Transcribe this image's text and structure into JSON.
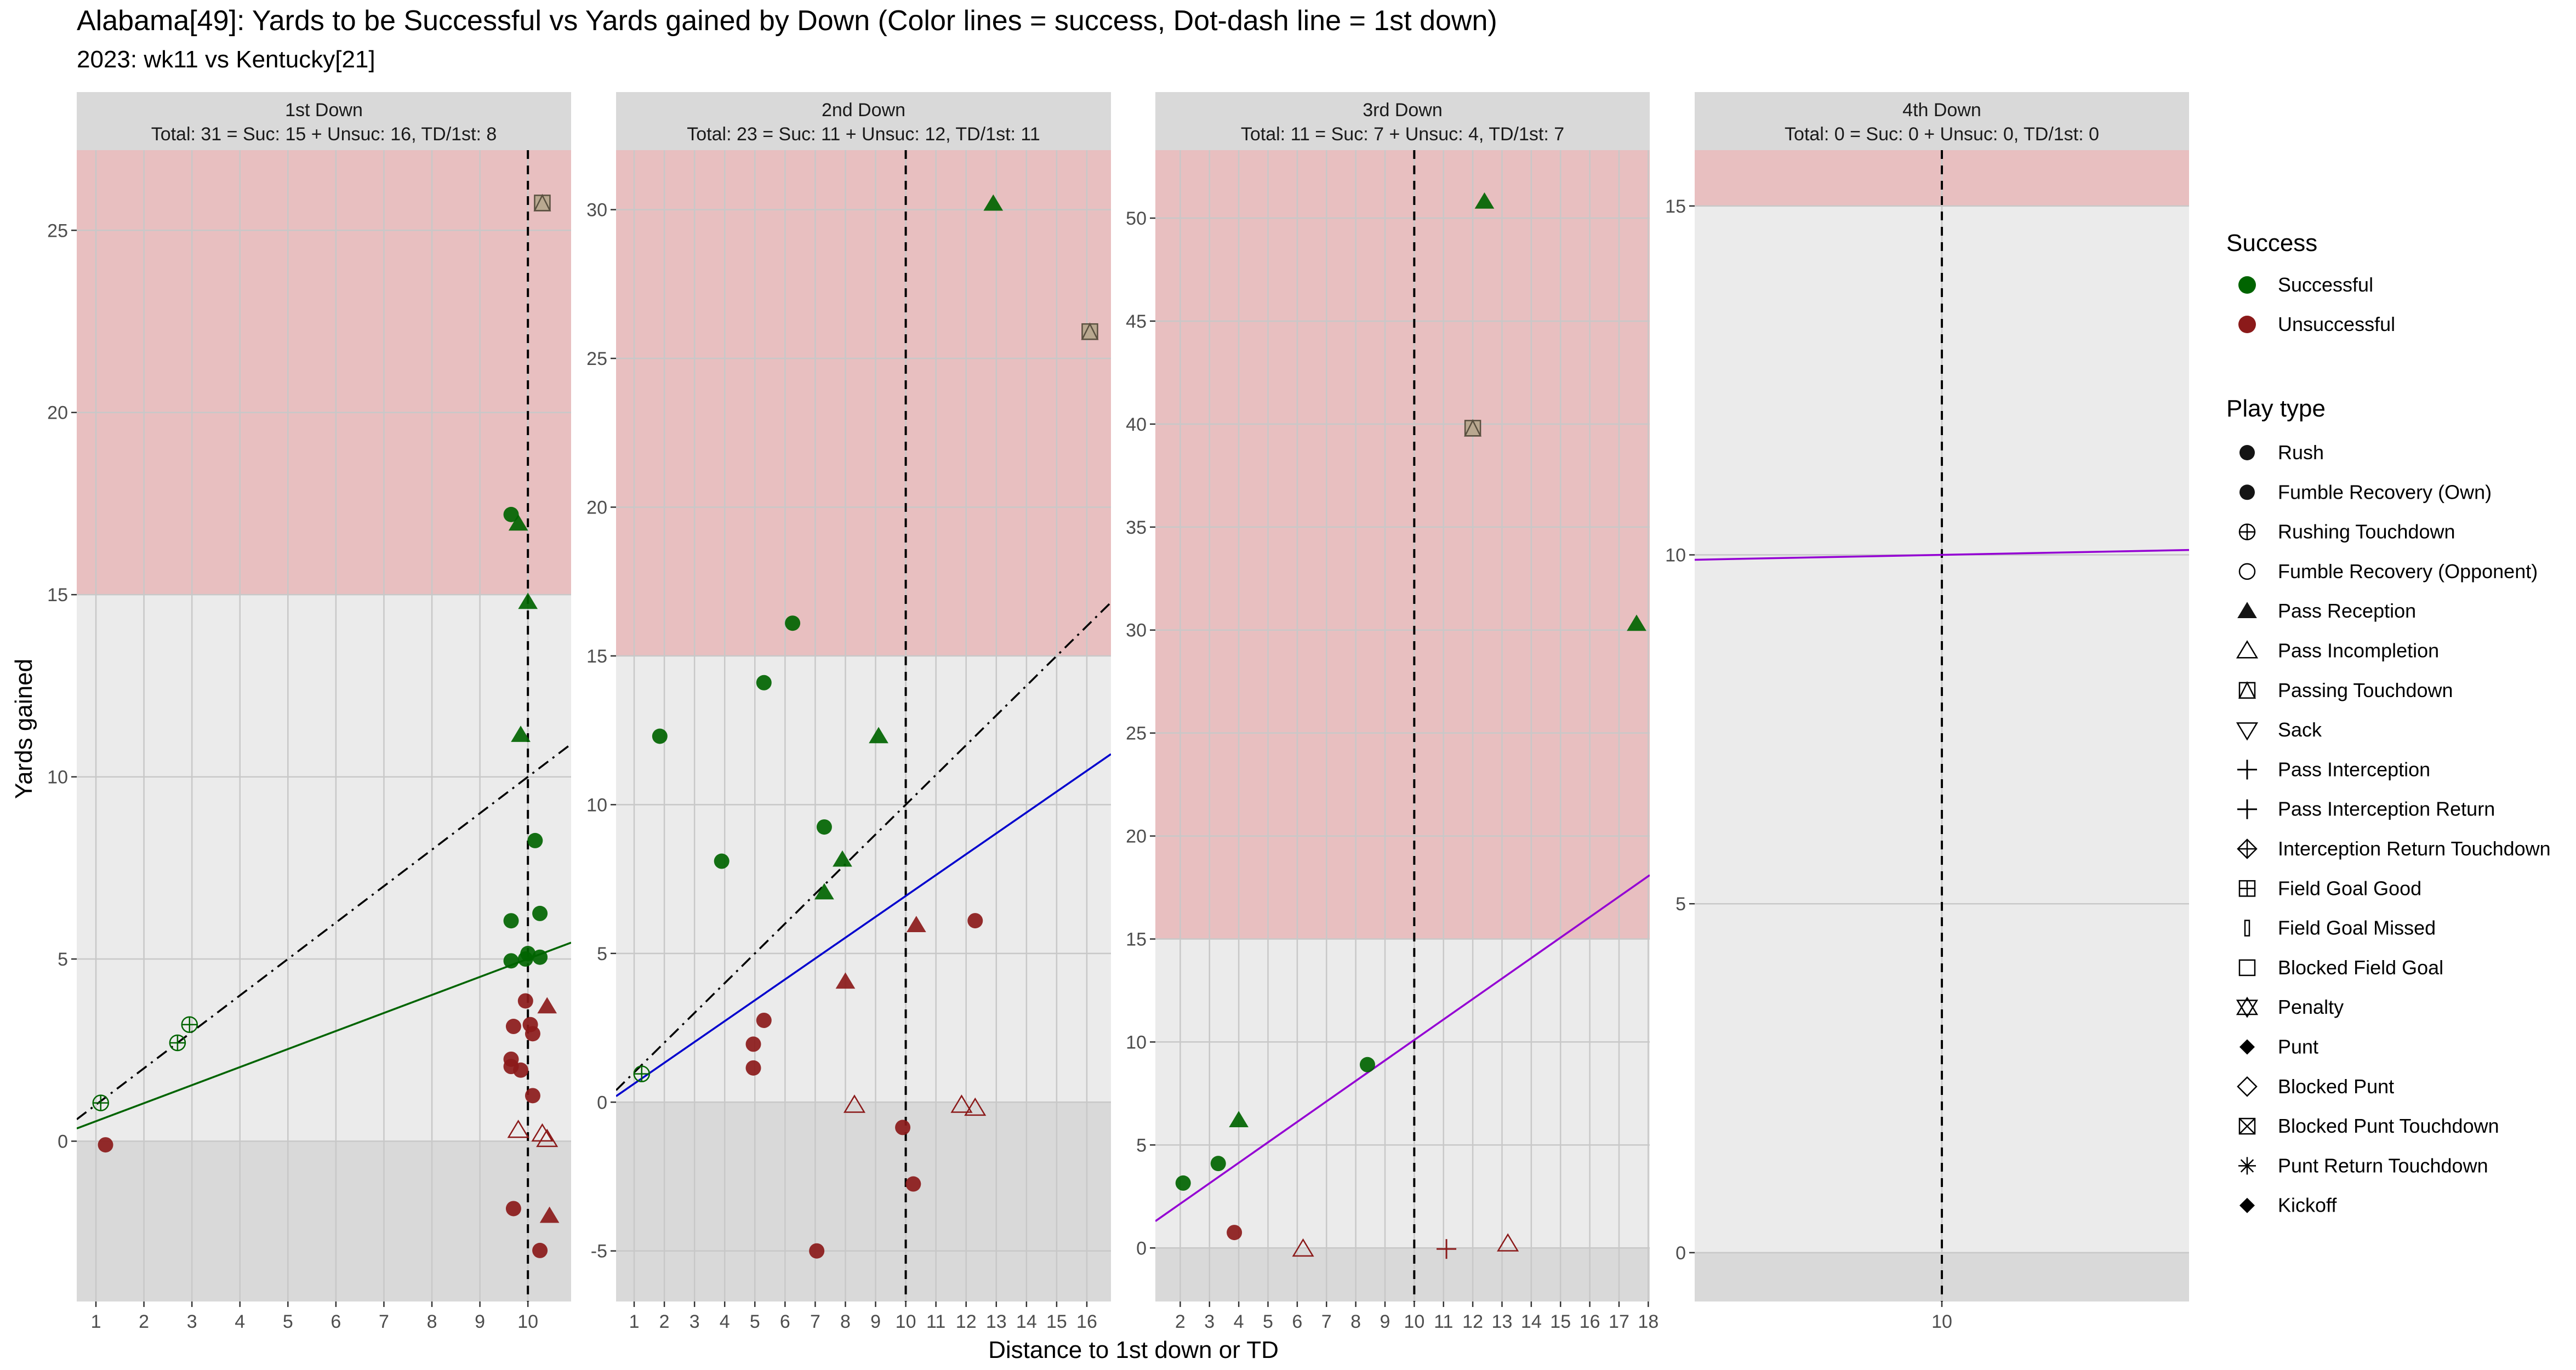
{
  "title": "Alabama[49]: Yards to be Successful vs Yards gained by Down  (Color lines = success, Dot-dash line = 1st down)",
  "subtitle": "2023: wk11 vs Kentucky[21]",
  "xlabel": "Distance to 1st down or TD",
  "ylabel": "Yards gained",
  "colors": {
    "successful": "#006400",
    "unsuccessful": "#8B1A1A",
    "panel_bg": "#EBEBEB",
    "strip_bg": "#D9D9D9",
    "red_zone": "#E8BFC0",
    "neg_zone": "#D9D9D9",
    "grid": "#C8C8C8"
  },
  "legend": {
    "success_title": "Success",
    "success_items": [
      {
        "label": "Successful",
        "color": "#006400"
      },
      {
        "label": "Unsuccessful",
        "color": "#8B1A1A"
      }
    ],
    "playtype_title": "Play type",
    "playtype_items": [
      {
        "label": "Rush",
        "icon": "filled-circle"
      },
      {
        "label": "Fumble Recovery (Own)",
        "icon": "filled-circle"
      },
      {
        "label": "Rushing Touchdown",
        "icon": "circle-plus"
      },
      {
        "label": "Fumble Recovery (Opponent)",
        "icon": "open-circle"
      },
      {
        "label": "Pass Reception",
        "icon": "filled-triangle"
      },
      {
        "label": "Pass Incompletion",
        "icon": "open-triangle"
      },
      {
        "label": "Passing Touchdown",
        "icon": "square-triangle"
      },
      {
        "label": "Sack",
        "icon": "open-triangle-down"
      },
      {
        "label": "Pass Interception",
        "icon": "plus"
      },
      {
        "label": "Pass Interception Return",
        "icon": "plus"
      },
      {
        "label": "Interception Return Touchdown",
        "icon": "diamond-plus"
      },
      {
        "label": "Field Goal Good",
        "icon": "square-plus"
      },
      {
        "label": "Field Goal Missed",
        "icon": "thin-rect"
      },
      {
        "label": "Blocked Field Goal",
        "icon": "open-square"
      },
      {
        "label": "Penalty",
        "icon": "star-of-david"
      },
      {
        "label": "Punt",
        "icon": "filled-diamond"
      },
      {
        "label": "Blocked Punt",
        "icon": "open-diamond"
      },
      {
        "label": "Blocked Punt Touchdown",
        "icon": "square-x"
      },
      {
        "label": "Punt Return Touchdown",
        "icon": "asterisk"
      },
      {
        "label": "Kickoff",
        "icon": "filled-diamond"
      }
    ]
  },
  "chart_data": [
    {
      "type": "scatter",
      "strip_title": "1st Down",
      "strip_subtitle": "Total: 31 = Suc: 15 + Unsuc: 16, TD/1st: 8",
      "xlim": [
        0.6,
        10.9
      ],
      "ylim": [
        -4.4,
        27.2
      ],
      "xticks": [
        1,
        2,
        3,
        4,
        5,
        6,
        7,
        8,
        9,
        10
      ],
      "xticklabels": [
        "1",
        "2",
        "3",
        "4",
        "5",
        "6",
        "7",
        "8",
        "9",
        "10"
      ],
      "yticks": [
        0,
        5,
        10,
        15,
        20,
        25
      ],
      "yticklabels": [
        "0",
        "5",
        "10",
        "15",
        "20",
        "25"
      ],
      "redzone_from": 15,
      "vline": 10,
      "first_down_line": [
        [
          0.6,
          0.6
        ],
        [
          10.9,
          10.9
        ]
      ],
      "success_line": {
        "color": "#006400",
        "points": [
          [
            0.6,
            0.35
          ],
          [
            10.9,
            5.45
          ]
        ]
      },
      "points": [
        {
          "x": 1.1,
          "y": 1.05,
          "shape": "circle-plus",
          "success": true
        },
        {
          "x": 1.2,
          "y": -0.1,
          "shape": "circle",
          "success": false
        },
        {
          "x": 2.7,
          "y": 2.7,
          "shape": "circle-plus",
          "success": true
        },
        {
          "x": 2.95,
          "y": 3.2,
          "shape": "circle-plus",
          "success": true
        },
        {
          "x": 9.65,
          "y": 17.2,
          "shape": "circle",
          "success": true
        },
        {
          "x": 9.8,
          "y": 16.95,
          "shape": "triangle",
          "success": true
        },
        {
          "x": 10.0,
          "y": 14.8,
          "shape": "triangle",
          "success": true
        },
        {
          "x": 9.85,
          "y": 11.15,
          "shape": "triangle",
          "success": true
        },
        {
          "x": 10.15,
          "y": 8.25,
          "shape": "circle",
          "success": true
        },
        {
          "x": 9.65,
          "y": 6.05,
          "shape": "circle",
          "success": true
        },
        {
          "x": 10.25,
          "y": 6.25,
          "shape": "circle",
          "success": true
        },
        {
          "x": 9.65,
          "y": 4.95,
          "shape": "circle",
          "success": true
        },
        {
          "x": 9.95,
          "y": 5.0,
          "shape": "circle",
          "success": true
        },
        {
          "x": 10.0,
          "y": 5.15,
          "shape": "circle",
          "success": true
        },
        {
          "x": 10.25,
          "y": 5.05,
          "shape": "circle",
          "success": true
        },
        {
          "x": 10.3,
          "y": 25.75,
          "shape": "square-triangle",
          "success": true
        },
        {
          "x": 9.95,
          "y": 3.85,
          "shape": "circle",
          "success": false
        },
        {
          "x": 10.4,
          "y": 3.7,
          "shape": "triangle",
          "success": false
        },
        {
          "x": 9.7,
          "y": 3.15,
          "shape": "circle",
          "success": false
        },
        {
          "x": 10.05,
          "y": 3.2,
          "shape": "circle",
          "success": false
        },
        {
          "x": 10.1,
          "y": 2.95,
          "shape": "circle",
          "success": false
        },
        {
          "x": 9.65,
          "y": 2.25,
          "shape": "circle",
          "success": false
        },
        {
          "x": 9.65,
          "y": 2.05,
          "shape": "circle",
          "success": false
        },
        {
          "x": 9.85,
          "y": 1.95,
          "shape": "circle",
          "success": false
        },
        {
          "x": 10.1,
          "y": 1.25,
          "shape": "circle",
          "success": false
        },
        {
          "x": 9.8,
          "y": 0.3,
          "shape": "open-triangle",
          "success": false
        },
        {
          "x": 10.3,
          "y": 0.2,
          "shape": "open-triangle",
          "success": false
        },
        {
          "x": 10.4,
          "y": 0.05,
          "shape": "open-triangle",
          "success": false
        },
        {
          "x": 9.7,
          "y": -1.85,
          "shape": "circle",
          "success": false
        },
        {
          "x": 10.45,
          "y": -2.05,
          "shape": "triangle",
          "success": false
        },
        {
          "x": 10.25,
          "y": -3.0,
          "shape": "circle",
          "success": false
        }
      ]
    },
    {
      "type": "scatter",
      "strip_title": "2nd Down",
      "strip_subtitle": "Total: 23 = Suc: 11 + Unsuc: 12, TD/1st: 11",
      "xlim": [
        0.4,
        16.8
      ],
      "ylim": [
        -6.7,
        32.0
      ],
      "xticks": [
        1,
        2,
        3,
        4,
        5,
        6,
        7,
        8,
        9,
        10,
        11,
        12,
        13,
        14,
        15,
        16
      ],
      "xticklabels": [
        "1",
        "2",
        "3",
        "4",
        "5",
        "6",
        "7",
        "8",
        "9",
        "10",
        "11",
        "12",
        "13",
        "14",
        "15",
        "16"
      ],
      "yticks": [
        -5,
        0,
        5,
        10,
        15,
        20,
        25,
        30
      ],
      "yticklabels": [
        "-5",
        "0",
        "5",
        "10",
        "15",
        "20",
        "25",
        "30"
      ],
      "redzone_from": 15,
      "vline": 10,
      "first_down_line": [
        [
          0.4,
          0.4
        ],
        [
          16.8,
          16.8
        ]
      ],
      "success_line": {
        "color": "#0000CD",
        "points": [
          [
            0.4,
            0.2
          ],
          [
            16.8,
            11.7
          ]
        ]
      },
      "points": [
        {
          "x": 1.25,
          "y": 0.95,
          "shape": "circle-plus",
          "success": true
        },
        {
          "x": 1.85,
          "y": 12.3,
          "shape": "circle",
          "success": true
        },
        {
          "x": 3.9,
          "y": 8.1,
          "shape": "circle",
          "success": true
        },
        {
          "x": 5.3,
          "y": 14.1,
          "shape": "circle",
          "success": true
        },
        {
          "x": 6.25,
          "y": 16.1,
          "shape": "circle",
          "success": true
        },
        {
          "x": 7.3,
          "y": 9.25,
          "shape": "circle",
          "success": true
        },
        {
          "x": 7.3,
          "y": 7.05,
          "shape": "triangle",
          "success": true
        },
        {
          "x": 7.9,
          "y": 8.15,
          "shape": "triangle",
          "success": true
        },
        {
          "x": 9.1,
          "y": 12.3,
          "shape": "triangle",
          "success": true
        },
        {
          "x": 12.9,
          "y": 30.2,
          "shape": "triangle",
          "success": true
        },
        {
          "x": 16.1,
          "y": 25.9,
          "shape": "square-triangle",
          "success": true
        },
        {
          "x": 5.3,
          "y": 2.75,
          "shape": "circle",
          "success": false
        },
        {
          "x": 4.95,
          "y": 1.95,
          "shape": "circle",
          "success": false
        },
        {
          "x": 4.95,
          "y": 1.15,
          "shape": "circle",
          "success": false
        },
        {
          "x": 8.0,
          "y": 4.05,
          "shape": "triangle",
          "success": false
        },
        {
          "x": 8.3,
          "y": -0.1,
          "shape": "open-triangle",
          "success": false
        },
        {
          "x": 10.35,
          "y": 5.95,
          "shape": "triangle",
          "success": false
        },
        {
          "x": 12.3,
          "y": 6.1,
          "shape": "circle",
          "success": false
        },
        {
          "x": 9.9,
          "y": -0.85,
          "shape": "circle",
          "success": false
        },
        {
          "x": 10.25,
          "y": -2.75,
          "shape": "circle",
          "success": false
        },
        {
          "x": 7.05,
          "y": -5.0,
          "shape": "circle",
          "success": false
        },
        {
          "x": 11.85,
          "y": -0.1,
          "shape": "open-triangle",
          "success": false
        },
        {
          "x": 12.3,
          "y": -0.2,
          "shape": "open-triangle",
          "success": false
        }
      ]
    },
    {
      "type": "scatter",
      "strip_title": "3rd Down",
      "strip_subtitle": "Total: 11 = Suc: 7 + Unsuc: 4, TD/1st: 7",
      "xlim": [
        1.15,
        18.05
      ],
      "ylim": [
        -2.6,
        53.3
      ],
      "xticks": [
        2,
        3,
        4,
        5,
        6,
        7,
        8,
        9,
        10,
        11,
        12,
        13,
        14,
        15,
        16,
        17,
        18
      ],
      "xticklabels": [
        "2",
        "3",
        "4",
        "5",
        "6",
        "7",
        "8",
        "9",
        "10",
        "11",
        "12",
        "13",
        "14",
        "15",
        "16",
        "17",
        "18"
      ],
      "yticks": [
        0,
        5,
        10,
        15,
        20,
        25,
        30,
        35,
        40,
        45,
        50
      ],
      "yticklabels": [
        "0",
        "5",
        "10",
        "15",
        "20",
        "25",
        "30",
        "35",
        "40",
        "45",
        "50"
      ],
      "redzone_from": 15,
      "vline": 10,
      "first_down_line": null,
      "success_line": {
        "color": "#9400D3",
        "points": [
          [
            1.15,
            1.3
          ],
          [
            18.05,
            18.1
          ]
        ]
      },
      "points": [
        {
          "x": 2.1,
          "y": 3.15,
          "shape": "circle",
          "success": true
        },
        {
          "x": 3.3,
          "y": 4.1,
          "shape": "circle",
          "success": true
        },
        {
          "x": 4.0,
          "y": 6.2,
          "shape": "triangle",
          "success": true
        },
        {
          "x": 8.4,
          "y": 8.9,
          "shape": "circle",
          "success": true
        },
        {
          "x": 12.4,
          "y": 50.8,
          "shape": "triangle",
          "success": true
        },
        {
          "x": 12.0,
          "y": 39.8,
          "shape": "square-triangle",
          "success": true
        },
        {
          "x": 17.6,
          "y": 30.3,
          "shape": "triangle",
          "success": true
        },
        {
          "x": 3.85,
          "y": 0.75,
          "shape": "circle",
          "success": false
        },
        {
          "x": 6.2,
          "y": -0.05,
          "shape": "open-triangle",
          "success": false
        },
        {
          "x": 11.1,
          "y": -0.05,
          "shape": "plus",
          "success": false
        },
        {
          "x": 13.2,
          "y": 0.2,
          "shape": "open-triangle",
          "success": false
        }
      ]
    },
    {
      "type": "scatter",
      "strip_title": "4th Down",
      "strip_subtitle": "Total: 0 = Suc: 0 + Unsuc: 0, TD/1st: 0",
      "xlim": [
        9.3,
        10.7
      ],
      "ylim": [
        -0.7,
        15.8
      ],
      "xticks": [
        10
      ],
      "xticklabels": [
        "10"
      ],
      "yticks": [
        0,
        5,
        10,
        15
      ],
      "yticklabels": [
        "0",
        "5",
        "10",
        "15"
      ],
      "redzone_from": 15,
      "vline": 10,
      "first_down_line": null,
      "success_line": {
        "color": "#9400D3",
        "points": [
          [
            9.3,
            9.93
          ],
          [
            10.7,
            10.07
          ]
        ]
      },
      "points": []
    }
  ]
}
